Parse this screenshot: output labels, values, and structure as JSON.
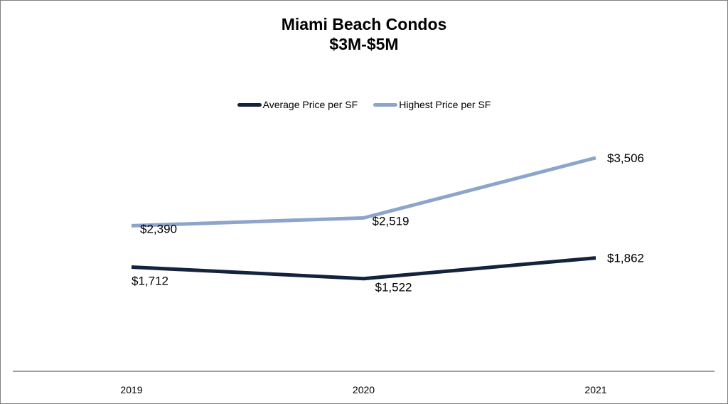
{
  "chart_data": {
    "type": "line",
    "title": [
      "Miami Beach Condos",
      "$3M-$5M"
    ],
    "categories": [
      "2019",
      "2020",
      "2021"
    ],
    "series": [
      {
        "name": "Average Price per SF",
        "values": [
          1712,
          1522,
          1862
        ],
        "labels": [
          "$1,712",
          "$1,522",
          "$1,862"
        ],
        "color": "#14233c"
      },
      {
        "name": "Highest Price per SF",
        "values": [
          2390,
          2519,
          3506
        ],
        "labels": [
          "$2,390",
          "$2,519",
          "$3,506"
        ],
        "color": "#8ea5cb"
      }
    ],
    "legend_position": "top",
    "grid": false,
    "axis_line_color": "#808080"
  }
}
